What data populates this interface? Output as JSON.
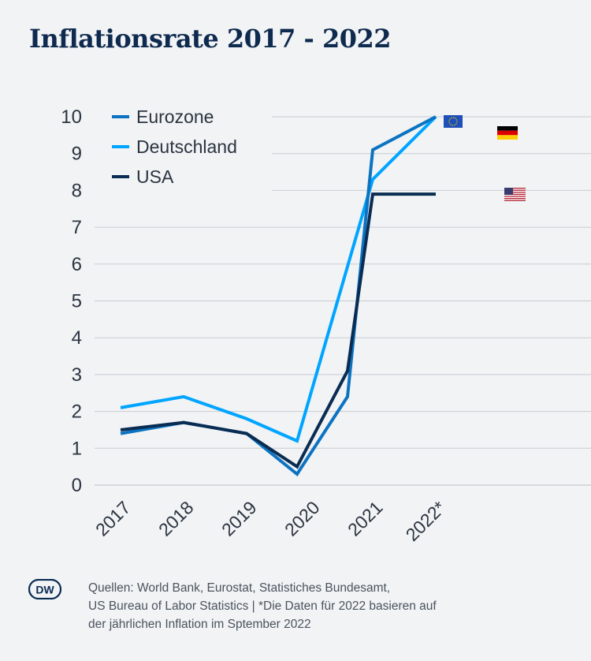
{
  "title": "Inflationsrate 2017 - 2022",
  "chart_data": {
    "type": "line",
    "title": "Inflationsrate 2017 - 2022",
    "categories": [
      "2017",
      "2018",
      "2019",
      "2020",
      "2021",
      "2022*"
    ],
    "x": [
      0,
      1,
      2,
      3,
      4,
      5
    ],
    "ylim": [
      0,
      10
    ],
    "yticks": [
      0,
      1,
      2,
      3,
      4,
      5,
      6,
      7,
      8,
      9,
      10
    ],
    "grid": true,
    "legend_position": "top-left",
    "series": [
      {
        "name": "Eurozone",
        "color": "#0c73c1",
        "flag": "eu-flag-icon",
        "points": [
          [
            0,
            1.4
          ],
          [
            1,
            1.7
          ],
          [
            2,
            1.4
          ],
          [
            2.8,
            0.3
          ],
          [
            3.6,
            2.4
          ],
          [
            4.0,
            9.1
          ],
          [
            5.0,
            10.0
          ]
        ]
      },
      {
        "name": "Deutschland",
        "color": "#00a5ff",
        "flag": "de-flag-icon",
        "points": [
          [
            0,
            2.1
          ],
          [
            1,
            2.4
          ],
          [
            2,
            1.8
          ],
          [
            2.8,
            1.2
          ],
          [
            4.0,
            8.3
          ],
          [
            5.0,
            10.0
          ]
        ]
      },
      {
        "name": "USA",
        "color": "#0a2c52",
        "flag": "us-flag-icon",
        "points": [
          [
            0,
            1.5
          ],
          [
            1,
            1.7
          ],
          [
            2,
            1.4
          ],
          [
            2.8,
            0.5
          ],
          [
            3.6,
            3.1
          ],
          [
            4.0,
            7.9
          ],
          [
            5.0,
            7.9
          ]
        ]
      }
    ]
  },
  "footer": {
    "logo": "DW",
    "lines": [
      "Quellen: World Bank, Eurostat, Statistiches Bundesamt,",
      "US Bureau of Labor Statistics | *Die Daten für 2022 basieren auf",
      "der jährlichen Inflation im Sptember 2022"
    ]
  }
}
